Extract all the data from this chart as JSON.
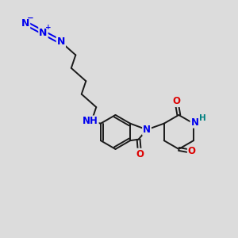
{
  "background_color": "#dcdcdc",
  "bond_color": "#1a1a1a",
  "bond_width": 1.4,
  "atom_colors": {
    "N": "#0000ee",
    "O": "#dd0000",
    "H": "#008080",
    "C": "#1a1a1a"
  },
  "font_size": 8.5,
  "figsize": [
    3.0,
    3.0
  ],
  "dpi": 100
}
